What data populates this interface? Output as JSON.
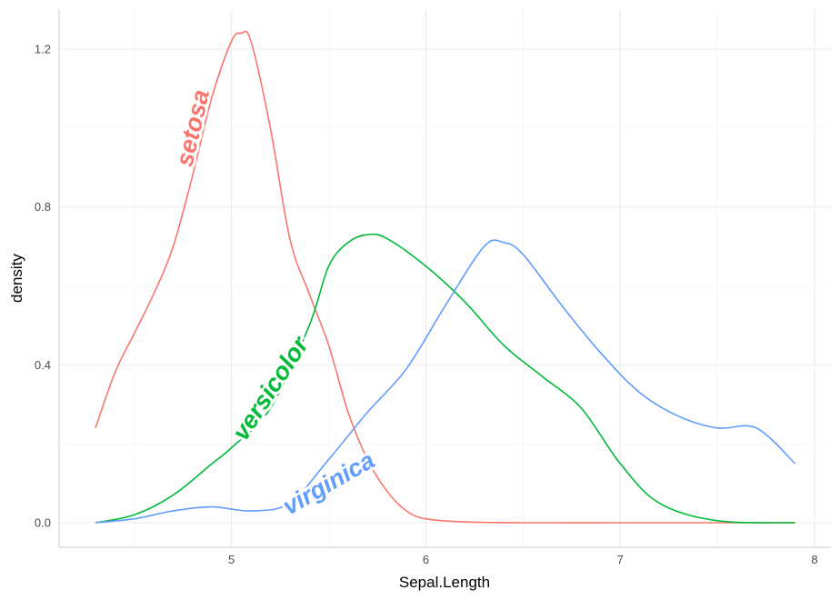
{
  "chart_data": {
    "type": "line",
    "xlabel": "Sepal.Length",
    "ylabel": "density",
    "xlim": [
      4.3,
      7.9
    ],
    "ylim": [
      0,
      1.24
    ],
    "x_ticks": [
      5,
      6,
      7,
      8
    ],
    "y_ticks": [
      0.0,
      0.4,
      0.8,
      1.2
    ],
    "y_tick_labels": [
      "0.0",
      "0.4",
      "0.8",
      "1.2"
    ],
    "grid": true,
    "legend": "none (labels placed along curves)",
    "series": [
      {
        "name": "setosa",
        "color": "#F8766D",
        "x": [
          4.3,
          4.4,
          4.5,
          4.6,
          4.7,
          4.8,
          4.9,
          5.0,
          5.05,
          5.1,
          5.2,
          5.3,
          5.4,
          5.5,
          5.6,
          5.7,
          5.8,
          5.9,
          6.0,
          6.2,
          6.5,
          7.0,
          7.5,
          7.9
        ],
        "y": [
          0.24,
          0.38,
          0.48,
          0.58,
          0.7,
          0.88,
          1.08,
          1.22,
          1.24,
          1.22,
          1.0,
          0.72,
          0.58,
          0.45,
          0.28,
          0.16,
          0.08,
          0.03,
          0.01,
          0.002,
          0.0,
          0.0,
          0.0,
          0.0
        ],
        "label": {
          "text": "setosa",
          "x": 4.8,
          "y": 1.0,
          "angle": -77
        }
      },
      {
        "name": "versicolor",
        "color": "#00BA38",
        "x": [
          4.3,
          4.5,
          4.7,
          4.9,
          5.0,
          5.2,
          5.4,
          5.5,
          5.6,
          5.7,
          5.8,
          6.0,
          6.2,
          6.4,
          6.6,
          6.8,
          7.0,
          7.2,
          7.5,
          7.9
        ],
        "y": [
          0.0,
          0.02,
          0.07,
          0.15,
          0.19,
          0.29,
          0.5,
          0.65,
          0.71,
          0.73,
          0.72,
          0.65,
          0.56,
          0.45,
          0.37,
          0.29,
          0.15,
          0.05,
          0.005,
          0.0
        ],
        "label": {
          "text": "versicolor",
          "x": 5.2,
          "y": 0.34,
          "angle": -57
        }
      },
      {
        "name": "virginica",
        "color": "#619CFF",
        "x": [
          4.3,
          4.5,
          4.7,
          4.9,
          5.1,
          5.3,
          5.5,
          5.7,
          5.9,
          6.1,
          6.3,
          6.4,
          6.5,
          6.7,
          6.9,
          7.1,
          7.3,
          7.5,
          7.7,
          7.9
        ],
        "y": [
          0.0,
          0.01,
          0.03,
          0.04,
          0.03,
          0.05,
          0.16,
          0.28,
          0.39,
          0.55,
          0.7,
          0.71,
          0.68,
          0.55,
          0.43,
          0.33,
          0.27,
          0.24,
          0.24,
          0.15
        ],
        "label": {
          "text": "virginica",
          "x": 5.5,
          "y": 0.1,
          "angle": -30
        }
      }
    ]
  }
}
